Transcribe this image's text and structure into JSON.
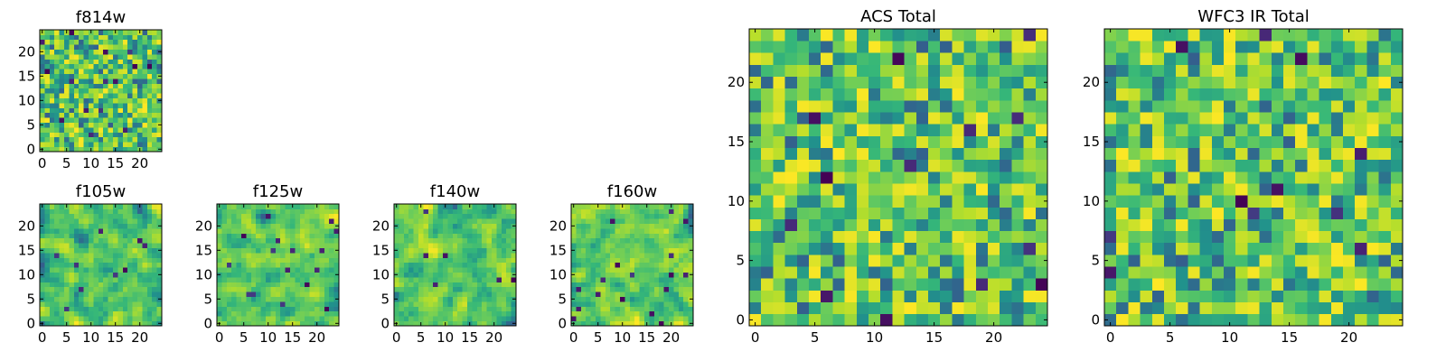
{
  "chart_data": [
    {
      "type": "heatmap",
      "title": "f814w",
      "grid_size": 25,
      "seed": 11,
      "blur": 0,
      "dark_fraction": 0.02,
      "xticks": [
        0,
        5,
        10,
        15,
        20
      ],
      "yticks": [
        0,
        5,
        10,
        15,
        20
      ],
      "xlim": [
        -0.5,
        24.5
      ],
      "ylim": [
        -0.5,
        24.5
      ],
      "colormap": "viridis"
    },
    {
      "type": "heatmap",
      "title": "f105w",
      "grid_size": 25,
      "seed": 23,
      "blur": 1,
      "dark_fraction": 0.02,
      "xticks": [
        0,
        5,
        10,
        15,
        20
      ],
      "yticks": [
        0,
        5,
        10,
        15,
        20
      ],
      "xlim": [
        -0.5,
        24.5
      ],
      "ylim": [
        -0.5,
        24.5
      ],
      "colormap": "viridis"
    },
    {
      "type": "heatmap",
      "title": "f125w",
      "grid_size": 25,
      "seed": 37,
      "blur": 1,
      "dark_fraction": 0.02,
      "xticks": [
        0,
        5,
        10,
        15,
        20
      ],
      "yticks": [
        0,
        5,
        10,
        15,
        20
      ],
      "xlim": [
        -0.5,
        24.5
      ],
      "ylim": [
        -0.5,
        24.5
      ],
      "colormap": "viridis"
    },
    {
      "type": "heatmap",
      "title": "f140w",
      "grid_size": 25,
      "seed": 41,
      "blur": 1,
      "dark_fraction": 0.02,
      "xticks": [
        0,
        5,
        10,
        15,
        20
      ],
      "yticks": [
        0,
        5,
        10,
        15,
        20
      ],
      "xlim": [
        -0.5,
        24.5
      ],
      "ylim": [
        -0.5,
        24.5
      ],
      "colormap": "viridis"
    },
    {
      "type": "heatmap",
      "title": "f160w",
      "grid_size": 25,
      "seed": 53,
      "blur": 1,
      "dark_fraction": 0.02,
      "xticks": [
        0,
        5,
        10,
        15,
        20
      ],
      "yticks": [
        0,
        5,
        10,
        15,
        20
      ],
      "xlim": [
        -0.5,
        24.5
      ],
      "ylim": [
        -0.5,
        24.5
      ],
      "colormap": "viridis"
    },
    {
      "type": "heatmap",
      "title": "ACS Total",
      "grid_size": 25,
      "seed": 67,
      "blur": 0,
      "dark_fraction": 0.012,
      "xticks": [
        0,
        5,
        10,
        15,
        20
      ],
      "yticks": [
        0,
        5,
        10,
        15,
        20
      ],
      "xlim": [
        -0.5,
        24.5
      ],
      "ylim": [
        -0.5,
        24.5
      ],
      "colormap": "viridis"
    },
    {
      "type": "heatmap",
      "title": "WFC3 IR Total",
      "grid_size": 25,
      "seed": 79,
      "blur": 0,
      "dark_fraction": 0.015,
      "xticks": [
        0,
        5,
        10,
        15,
        20
      ],
      "yticks": [
        0,
        5,
        10,
        15,
        20
      ],
      "xlim": [
        -0.5,
        24.5
      ],
      "ylim": [
        -0.5,
        24.5
      ],
      "colormap": "viridis"
    }
  ]
}
